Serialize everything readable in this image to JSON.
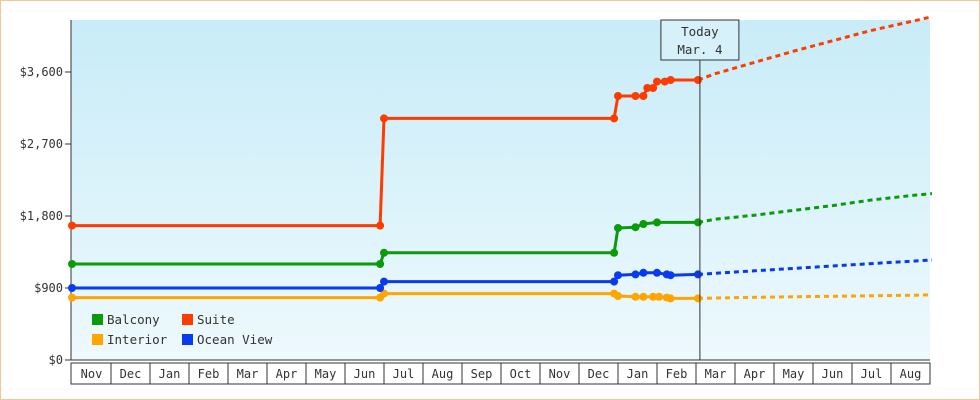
{
  "chart_data": {
    "type": "line",
    "title": "",
    "xlabel": "",
    "ylabel": "",
    "y_ticks": [
      "$0",
      "$900",
      "$1,800",
      "$2,700",
      "$3,600"
    ],
    "y_tick_values": [
      0,
      900,
      1800,
      2700,
      3600
    ],
    "ylim": [
      0,
      4250
    ],
    "x_month_labels": [
      "Nov",
      "Dec",
      "Jan",
      "Feb",
      "Mar",
      "Apr",
      "May",
      "Jun",
      "Jul",
      "Aug",
      "Sep",
      "Oct",
      "Nov",
      "Dec",
      "Jan",
      "Feb",
      "Mar",
      "Apr",
      "May",
      "Jun",
      "Jul",
      "Aug"
    ],
    "today_marker": {
      "line1": "Today",
      "line2": "Mar. 4",
      "month_position": 16.1
    },
    "legend_placement": "bottom-left",
    "grid": false,
    "colors": {
      "background_top": "#c8ecf8",
      "background_bottom": "#eef9fd",
      "border": "#f0c890"
    },
    "series": [
      {
        "name": "Balcony",
        "color": "#0a9a0a",
        "points": [
          [
            0,
            1200
          ],
          [
            7.9,
            1200
          ],
          [
            8.0,
            1340
          ],
          [
            13.9,
            1340
          ],
          [
            14.0,
            1650
          ],
          [
            14.45,
            1660
          ],
          [
            14.65,
            1700
          ],
          [
            15.0,
            1720
          ],
          [
            16.05,
            1720
          ]
        ],
        "forecast": [
          [
            16.05,
            1720
          ],
          [
            16.5,
            1760
          ],
          [
            17.5,
            1810
          ],
          [
            18.5,
            1870
          ],
          [
            19.5,
            1930
          ],
          [
            20.5,
            2000
          ],
          [
            21.6,
            2060
          ],
          [
            22.05,
            2080
          ]
        ]
      },
      {
        "name": "Suite",
        "color": "#ff3b00",
        "points": [
          [
            0,
            1680
          ],
          [
            7.9,
            1680
          ],
          [
            8.0,
            3020
          ],
          [
            13.9,
            3020
          ],
          [
            14.0,
            3300
          ],
          [
            14.45,
            3300
          ],
          [
            14.65,
            3300
          ],
          [
            14.75,
            3400
          ],
          [
            14.9,
            3400
          ],
          [
            15.0,
            3480
          ],
          [
            15.2,
            3480
          ],
          [
            15.35,
            3500
          ],
          [
            16.05,
            3500
          ]
        ],
        "forecast": [
          [
            16.05,
            3500
          ],
          [
            16.5,
            3580
          ],
          [
            17.5,
            3720
          ],
          [
            18.5,
            3860
          ],
          [
            19.5,
            3990
          ],
          [
            20.5,
            4120
          ],
          [
            21.6,
            4240
          ],
          [
            22.05,
            4290
          ]
        ]
      },
      {
        "name": "Interior",
        "color": "#ffa500",
        "points": [
          [
            0,
            780
          ],
          [
            7.9,
            780
          ],
          [
            8.0,
            830
          ],
          [
            13.9,
            830
          ],
          [
            14.0,
            800
          ],
          [
            14.45,
            790
          ],
          [
            14.65,
            790
          ],
          [
            14.9,
            790
          ],
          [
            15.05,
            790
          ],
          [
            15.25,
            780
          ],
          [
            15.35,
            770
          ],
          [
            16.05,
            770
          ]
        ],
        "forecast": [
          [
            16.05,
            770
          ],
          [
            17.0,
            780
          ],
          [
            18.5,
            790
          ],
          [
            20.0,
            800
          ],
          [
            21.6,
            810
          ],
          [
            22.05,
            815
          ]
        ]
      },
      {
        "name": "Ocean View",
        "color": "#0a3af0",
        "points": [
          [
            0,
            900
          ],
          [
            7.9,
            900
          ],
          [
            8.0,
            980
          ],
          [
            13.9,
            980
          ],
          [
            14.0,
            1060
          ],
          [
            14.45,
            1070
          ],
          [
            14.65,
            1090
          ],
          [
            15.0,
            1090
          ],
          [
            15.25,
            1070
          ],
          [
            15.35,
            1060
          ],
          [
            16.05,
            1070
          ]
        ],
        "forecast": [
          [
            16.05,
            1070
          ],
          [
            17.0,
            1100
          ],
          [
            18.0,
            1130
          ],
          [
            19.0,
            1160
          ],
          [
            20.0,
            1190
          ],
          [
            21.0,
            1220
          ],
          [
            22.05,
            1250
          ]
        ]
      }
    ]
  }
}
